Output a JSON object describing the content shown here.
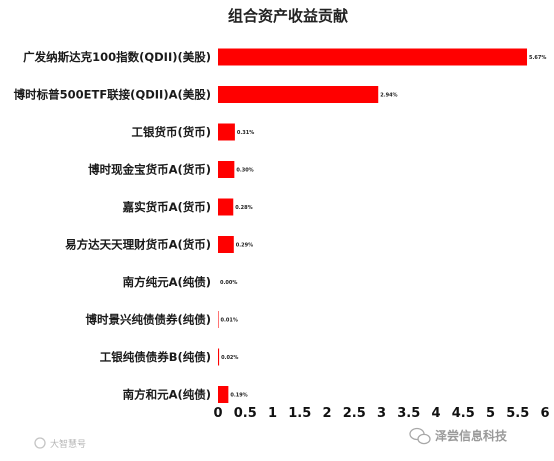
{
  "chart_data": {
    "type": "bar",
    "orientation": "horizontal",
    "title": "组合资产收益贡献",
    "categories": [
      "广发纳斯达克100指数(QDII)(美股)",
      "博时标普500ETF联接(QDII)A(美股)",
      "工银货币(货币)",
      "博时现金宝货币A(货币)",
      "嘉实货币A(货币)",
      "易方达天天理财货币A(货币)",
      "南方纯元A(纯债)",
      "博时景兴纯债债券(纯债)",
      "工银纯债债券B(纯债)",
      "南方和元A(纯债)"
    ],
    "values": [
      5.67,
      2.94,
      0.31,
      0.3,
      0.28,
      0.29,
      0.0,
      0.01,
      0.02,
      0.19
    ],
    "data_labels": [
      "5.67%",
      "2.94%",
      "0.31%",
      "0.30%",
      "0.28%",
      "0.29%",
      "0.00%",
      "0.01%",
      "0.02%",
      "0.19%"
    ],
    "xlim": [
      0,
      6
    ],
    "xticks": [
      "0",
      "0.5",
      "1",
      "1.5",
      "2",
      "2.5",
      "3",
      "3.5",
      "4",
      "4.5",
      "5",
      "5.5",
      "6"
    ],
    "xlabel": "",
    "ylabel": "",
    "grid": false,
    "bar_color": "#ff0000"
  },
  "watermarks": {
    "left": "大智慧号",
    "right": "泽尝信息科技"
  }
}
